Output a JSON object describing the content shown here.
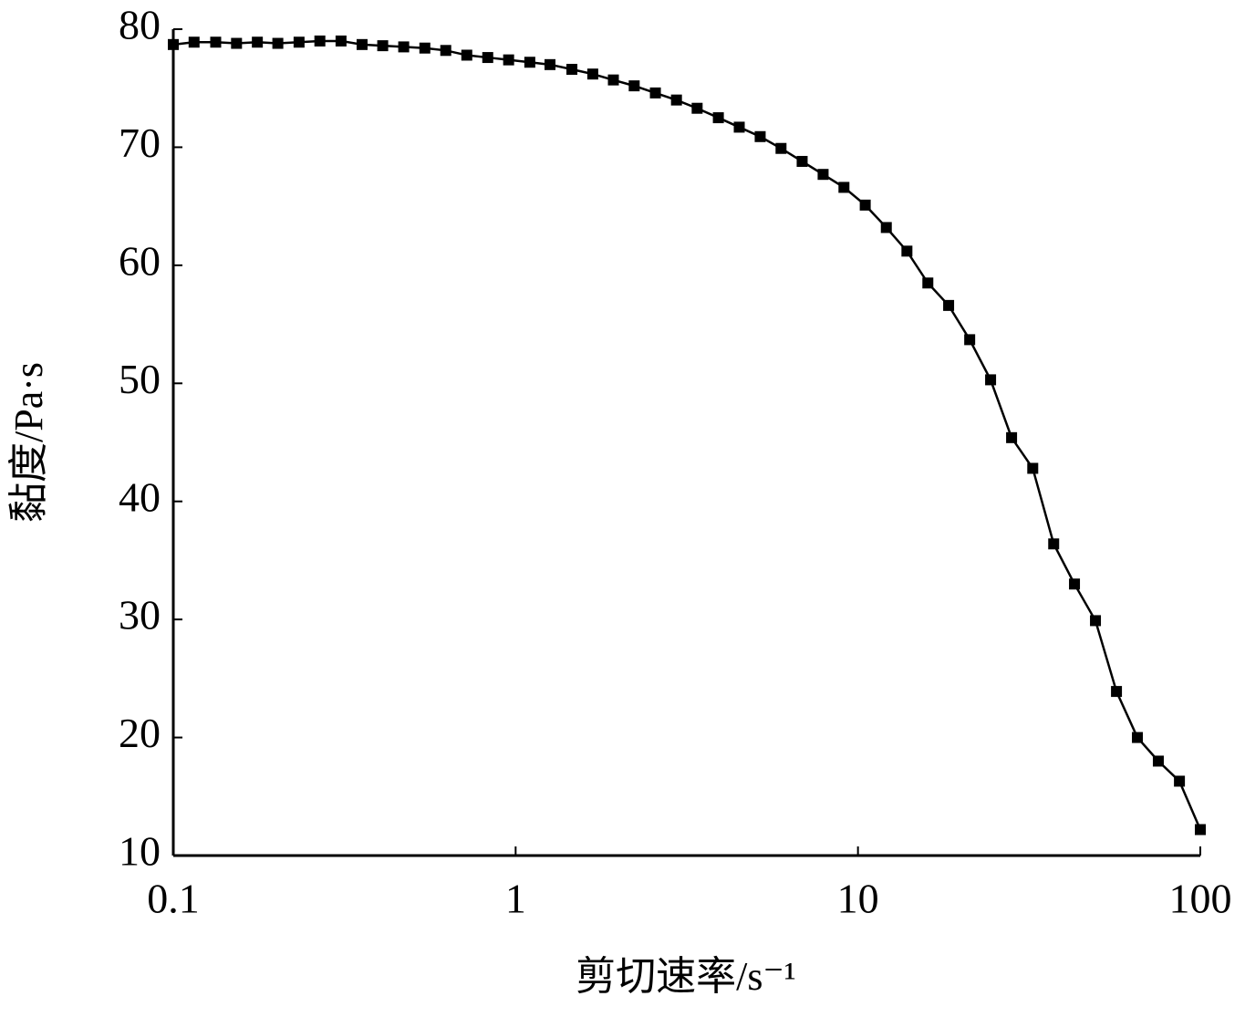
{
  "chart_data": {
    "type": "line",
    "x_label": "剪切速率/s⁻¹",
    "y_label": "黏度/Pa·s",
    "x_scale": "log",
    "xlim": [
      0.1,
      100
    ],
    "xticks": [
      0.1,
      1,
      10,
      100
    ],
    "ylim": [
      10,
      80
    ],
    "yticks": [
      10,
      20,
      30,
      40,
      50,
      60,
      70,
      80
    ],
    "grid": false,
    "x": [
      0.1,
      0.115,
      0.133,
      0.153,
      0.176,
      0.202,
      0.233,
      0.268,
      0.309,
      0.356,
      0.409,
      0.471,
      0.543,
      0.625,
      0.72,
      0.829,
      0.954,
      1.1,
      1.26,
      1.46,
      1.68,
      1.93,
      2.22,
      2.56,
      2.95,
      3.39,
      3.91,
      4.5,
      5.18,
      5.96,
      6.87,
      7.91,
      9.1,
      10.5,
      12.1,
      13.9,
      16.0,
      18.4,
      21.2,
      24.4,
      28.1,
      32.4,
      37.3,
      42.9,
      49.4,
      56.9,
      65.5,
      75.4,
      86.9,
      100
    ],
    "series": [
      {
        "color": "#000000",
        "marker": "square",
        "values": [
          78.7,
          78.9,
          78.9,
          78.8,
          78.9,
          78.8,
          78.9,
          79.0,
          79.0,
          78.7,
          78.6,
          78.5,
          78.4,
          78.2,
          77.8,
          77.6,
          77.4,
          77.2,
          77.0,
          76.6,
          76.2,
          75.7,
          75.2,
          74.6,
          74.0,
          73.3,
          72.5,
          71.7,
          70.9,
          69.9,
          68.8,
          67.7,
          66.6,
          65.1,
          63.2,
          61.2,
          58.5,
          56.6,
          53.7,
          50.3,
          45.4,
          42.8,
          36.4,
          33.0,
          29.9,
          23.9,
          20.0,
          18.0,
          16.3,
          12.2
        ]
      }
    ]
  }
}
